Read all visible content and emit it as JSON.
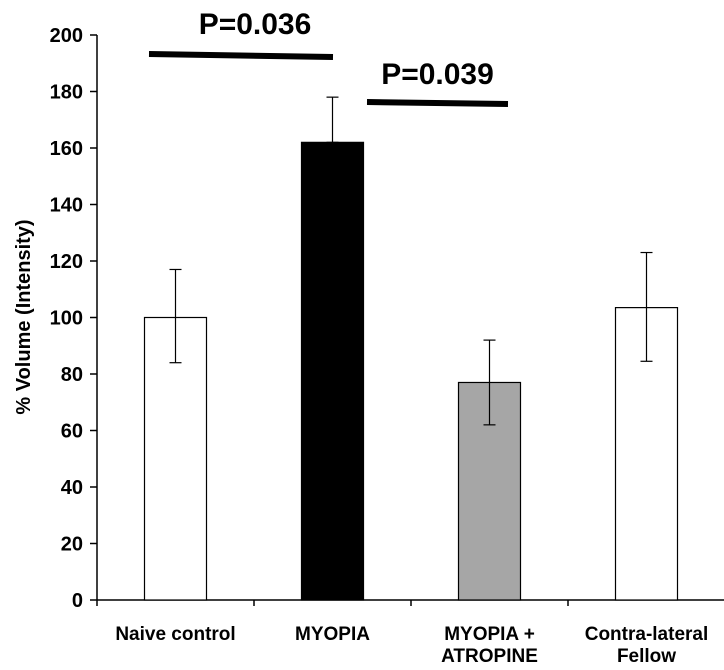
{
  "chart_data": {
    "type": "bar",
    "title": "",
    "xlabel": "",
    "ylabel": "% Volume (Intensity)",
    "ylim": [
      0,
      200
    ],
    "yticks": [
      0,
      20,
      40,
      60,
      80,
      100,
      120,
      140,
      160,
      180,
      200
    ],
    "grid": false,
    "legend": "none",
    "categories": [
      {
        "lines": [
          "Naive control"
        ]
      },
      {
        "lines": [
          "MYOPIA"
        ]
      },
      {
        "lines": [
          "MYOPIA +",
          "ATROPINE"
        ]
      },
      {
        "lines": [
          "Contra-lateral",
          "Fellow"
        ]
      }
    ],
    "values": [
      100,
      162,
      77,
      103.5
    ],
    "error": [
      {
        "low": 84,
        "high": 117
      },
      {
        "low": 162,
        "high": 178
      },
      {
        "low": 62,
        "high": 92
      },
      {
        "low": 84.5,
        "high": 123
      }
    ],
    "bar_colors": [
      "#ffffff",
      "#000000",
      "#a6a6a6",
      "#ffffff"
    ],
    "annotations": [
      {
        "text": "P=0.036",
        "from_category": 0,
        "to_category": 1
      },
      {
        "text": "P=0.039",
        "from_category": 1,
        "to_category": 2
      }
    ]
  }
}
